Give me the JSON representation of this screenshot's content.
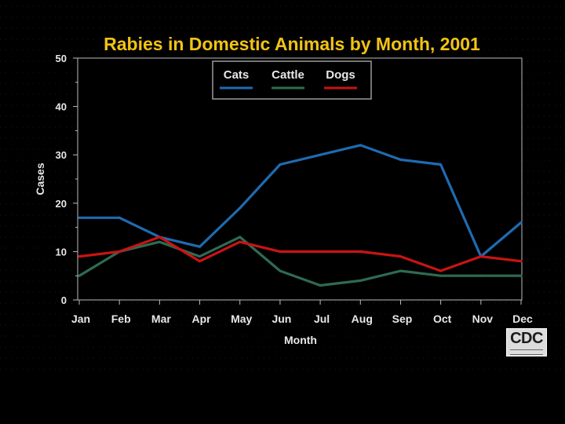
{
  "colors": {
    "background": "#000000",
    "plot_background": "#000000",
    "title": "#f2c314",
    "text": "#e8e8e8",
    "cats": "#1f6bb0",
    "cattle": "#2f6b52",
    "dogs": "#c81414",
    "axis": "#bdbdbd"
  },
  "logo": {
    "text": "CDC",
    "icon": "cdc-logo-icon"
  },
  "chart_data": {
    "type": "line",
    "title": "Rabies in Domestic Animals by Month, 2001",
    "xlabel": "Month",
    "ylabel": "Cases",
    "categories": [
      "Jan",
      "Feb",
      "Mar",
      "Apr",
      "May",
      "Jun",
      "Jul",
      "Aug",
      "Sep",
      "Oct",
      "Nov",
      "Dec"
    ],
    "yticks": [
      "0",
      "10",
      "20",
      "30",
      "40",
      "50"
    ],
    "ylim": [
      0,
      50
    ],
    "grid": false,
    "legend_position": "top-center",
    "series": [
      {
        "name": "Cats",
        "color": "#1f6bb0",
        "values": [
          17,
          17,
          13,
          11,
          19,
          28,
          30,
          32,
          29,
          28,
          9,
          16
        ]
      },
      {
        "name": "Cattle",
        "color": "#2f6b52",
        "values": [
          5,
          10,
          12,
          9,
          13,
          6,
          3,
          4,
          6,
          5,
          5,
          5
        ]
      },
      {
        "name": "Dogs",
        "color": "#c81414",
        "values": [
          9,
          10,
          13,
          8,
          12,
          10,
          10,
          10,
          9,
          6,
          9,
          8
        ]
      }
    ]
  }
}
